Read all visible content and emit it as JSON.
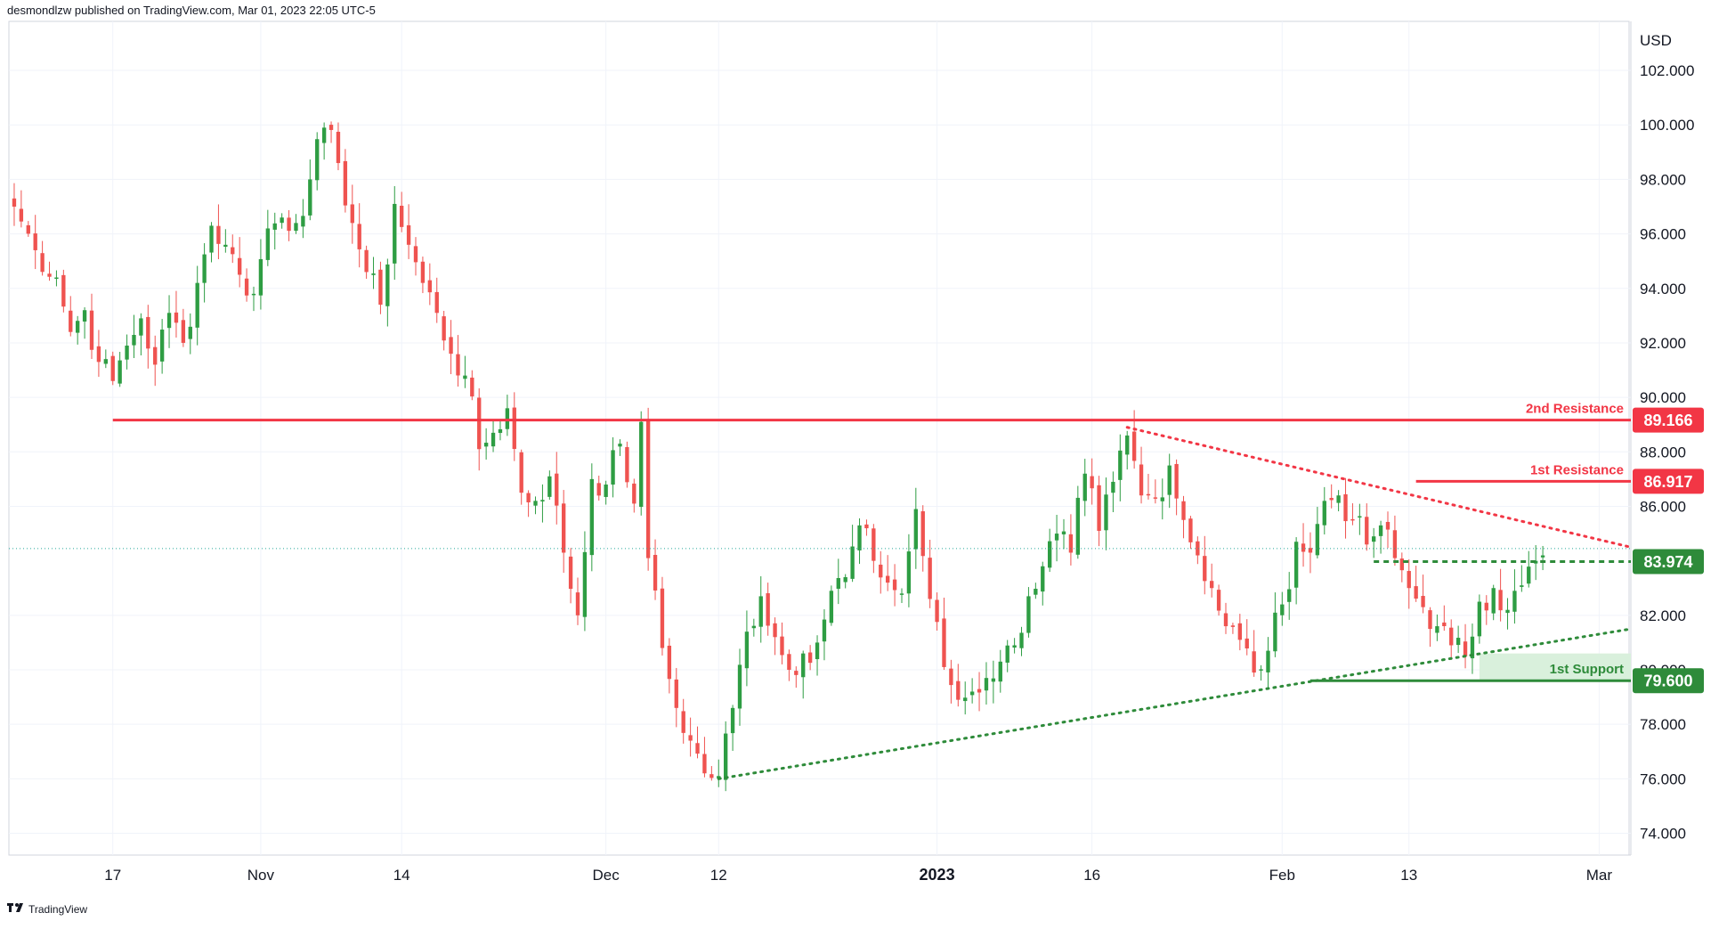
{
  "header": {
    "published_by": "desmondlzw published on TradingView.com, Mar 01, 2023 22:05 UTC-5"
  },
  "footer": {
    "brand": "TradingView",
    "logo_icon": "tradingview-logo-icon"
  },
  "colors": {
    "bull": "#26a69a",
    "bull_candle": "#2e9d43",
    "bear": "#ef5350",
    "resistance": "#f23645",
    "support": "#2e8b3a",
    "support_zone": "#d9f0dc",
    "grid": "#f0f3fa",
    "axis_text": "#131722"
  },
  "chart_data": {
    "type": "candlestick",
    "unit": "USD",
    "ylim": [
      73.2,
      103.8
    ],
    "y_ticks": [
      "102.000",
      "100.000",
      "98.000",
      "96.000",
      "94.000",
      "92.000",
      "90.000",
      "88.000",
      "86.000",
      "82.000",
      "80.000",
      "78.000",
      "76.000",
      "74.000"
    ],
    "x_ticks": [
      {
        "label": "17",
        "index": 14,
        "bold": false
      },
      {
        "label": "Nov",
        "index": 35,
        "bold": false
      },
      {
        "label": "14",
        "index": 55,
        "bold": false
      },
      {
        "label": "Dec",
        "index": 84,
        "bold": false
      },
      {
        "label": "12",
        "index": 100,
        "bold": false
      },
      {
        "label": "2023",
        "index": 131,
        "bold": true
      },
      {
        "label": "16",
        "index": 153,
        "bold": false
      },
      {
        "label": "Feb",
        "index": 180,
        "bold": false
      },
      {
        "label": "13",
        "index": 198,
        "bold": false
      },
      {
        "label": "Mar",
        "index": 225,
        "bold": false
      }
    ],
    "candle_count": 230,
    "anchors": [
      [
        0,
        97.0
      ],
      [
        3,
        95.4
      ],
      [
        6,
        94.4
      ],
      [
        8,
        92.4
      ],
      [
        10,
        93.2
      ],
      [
        12,
        91.3
      ],
      [
        14,
        90.6
      ],
      [
        16,
        91.9
      ],
      [
        18,
        92.9
      ],
      [
        20,
        91.2
      ],
      [
        22,
        93.1
      ],
      [
        24,
        92.0
      ],
      [
        26,
        94.2
      ],
      [
        28,
        96.3
      ],
      [
        30,
        95.6
      ],
      [
        32,
        94.5
      ],
      [
        34,
        93.8
      ],
      [
        36,
        96.2
      ],
      [
        38,
        96.6
      ],
      [
        40,
        96.4
      ],
      [
        42,
        98.0
      ],
      [
        44,
        99.9
      ],
      [
        46,
        98.6
      ],
      [
        48,
        96.4
      ],
      [
        50,
        94.6
      ],
      [
        52,
        93.4
      ],
      [
        54,
        97.1
      ],
      [
        56,
        95.6
      ],
      [
        58,
        94.2
      ],
      [
        60,
        93.1
      ],
      [
        62,
        91.6
      ],
      [
        64,
        90.8
      ],
      [
        66,
        88.1
      ],
      [
        68,
        88.7
      ],
      [
        70,
        89.6
      ],
      [
        72,
        86.5
      ],
      [
        74,
        86.2
      ],
      [
        76,
        87.1
      ],
      [
        78,
        84.3
      ],
      [
        80,
        82.0
      ],
      [
        82,
        87.0
      ],
      [
        84,
        86.8
      ],
      [
        86,
        88.3
      ],
      [
        88,
        86.1
      ],
      [
        89,
        89.1
      ],
      [
        90,
        84.1
      ],
      [
        92,
        80.8
      ],
      [
        94,
        78.6
      ],
      [
        96,
        77.4
      ],
      [
        98,
        76.2
      ],
      [
        100,
        76.1
      ],
      [
        102,
        78.6
      ],
      [
        104,
        81.4
      ],
      [
        106,
        82.7
      ],
      [
        108,
        81.2
      ],
      [
        110,
        80.0
      ],
      [
        112,
        80.6
      ],
      [
        114,
        81.0
      ],
      [
        116,
        82.9
      ],
      [
        118,
        83.4
      ],
      [
        120,
        85.3
      ],
      [
        122,
        84.0
      ],
      [
        124,
        83.2
      ],
      [
        126,
        82.8
      ],
      [
        128,
        85.9
      ],
      [
        130,
        82.6
      ],
      [
        132,
        80.1
      ],
      [
        134,
        78.9
      ],
      [
        136,
        79.2
      ],
      [
        138,
        79.7
      ],
      [
        140,
        80.3
      ],
      [
        142,
        80.9
      ],
      [
        144,
        82.7
      ],
      [
        146,
        83.8
      ],
      [
        148,
        85.0
      ],
      [
        150,
        84.3
      ],
      [
        152,
        87.2
      ],
      [
        154,
        85.1
      ],
      [
        156,
        86.9
      ],
      [
        158,
        88.6
      ],
      [
        160,
        86.4
      ],
      [
        162,
        86.3
      ],
      [
        164,
        87.5
      ],
      [
        166,
        85.5
      ],
      [
        168,
        84.2
      ],
      [
        170,
        83.0
      ],
      [
        172,
        81.6
      ],
      [
        174,
        81.1
      ],
      [
        176,
        79.9
      ],
      [
        178,
        80.7
      ],
      [
        180,
        82.4
      ],
      [
        182,
        84.7
      ],
      [
        184,
        84.3
      ],
      [
        186,
        86.2
      ],
      [
        188,
        86.4
      ],
      [
        190,
        85.5
      ],
      [
        192,
        84.6
      ],
      [
        194,
        85.3
      ],
      [
        196,
        84.1
      ],
      [
        198,
        83.0
      ],
      [
        200,
        82.3
      ],
      [
        202,
        81.6
      ],
      [
        204,
        80.9
      ],
      [
        206,
        80.5
      ],
      [
        208,
        82.5
      ],
      [
        210,
        83.0
      ],
      [
        212,
        82.2
      ],
      [
        214,
        83.1
      ],
      [
        216,
        84.0
      ],
      [
        217,
        84.2
      ]
    ],
    "last_price_line": {
      "value": 84.45
    },
    "levels": [
      {
        "name": "2nd Resistance",
        "value": 89.166,
        "label": "89.166",
        "kind": "resistance",
        "start_index": 14,
        "style": "solid"
      },
      {
        "name": "1st Resistance",
        "value": 86.917,
        "label": "86.917",
        "kind": "resistance",
        "start_index": 199,
        "style": "solid"
      },
      {
        "name": "",
        "value": 83.974,
        "label": "83.974",
        "kind": "support",
        "start_index": 193,
        "style": "dashed"
      },
      {
        "name": "1st Support",
        "value": 79.6,
        "label": "79.600",
        "kind": "support",
        "start_index": 184,
        "style": "solid"
      }
    ],
    "support_zone": {
      "from": 79.6,
      "to": 80.6,
      "start_index": 208
    },
    "trendlines": [
      {
        "kind": "resistance",
        "style": "dotted",
        "from": [
          158,
          88.9
        ],
        "to": [
          230,
          84.5
        ]
      },
      {
        "kind": "support",
        "style": "dotted",
        "from": [
          100,
          76.0
        ],
        "to": [
          230,
          81.5
        ]
      }
    ]
  }
}
